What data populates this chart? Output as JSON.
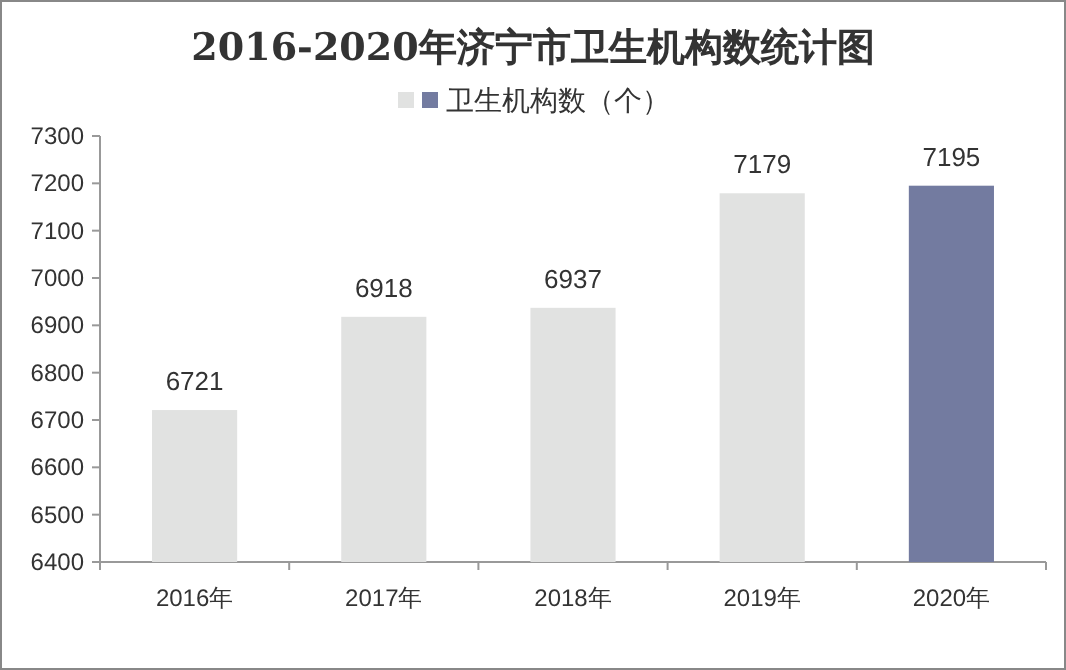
{
  "chart_data": {
    "type": "bar",
    "title": "2016-2020年济宁市卫生机构数统计图",
    "categories": [
      "2016年",
      "2017年",
      "2018年",
      "2019年",
      "2020年"
    ],
    "series": [
      {
        "name": "卫生机构数（个）",
        "colors": [
          "#e1e2e1",
          "#e1e2e1",
          "#e1e2e1",
          "#e1e2e1",
          "#737ba0"
        ],
        "values": [
          6721,
          6918,
          6937,
          7179,
          7195
        ]
      }
    ],
    "ylim": [
      6400,
      7300
    ],
    "yticks": [
      6400,
      6500,
      6600,
      6700,
      6800,
      6900,
      7000,
      7100,
      7200,
      7300
    ],
    "data_labels": true,
    "legend": "top",
    "grid": false
  }
}
